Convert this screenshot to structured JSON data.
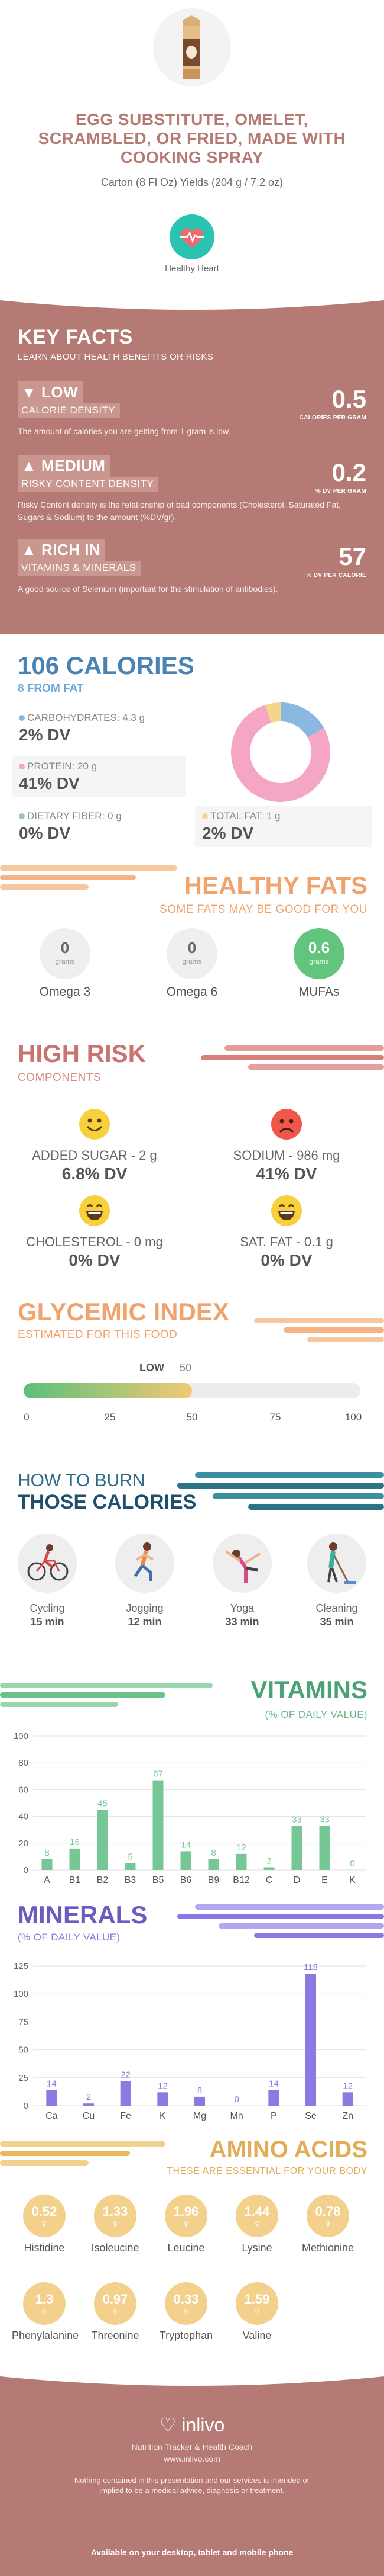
{
  "header": {
    "title": "EGG SUBSTITUTE, OMELET, SCRAMBLED, OR FRIED, MADE WITH COOKING SPRAY",
    "serving": "Carton (8 Fl Oz) Yields (204 g / 7.2 oz)",
    "badge_label": "Healthy Heart"
  },
  "key_facts": {
    "title": "KEY FACTS",
    "subtitle": "LEARN ABOUT HEALTH BENEFITS OR RISKS",
    "items": [
      {
        "level": "LOW",
        "category": "CALORIE DENSITY",
        "value": "0.5",
        "unit": "CALORIES PER GRAM",
        "description": "The amount of calories you are getting from 1 gram is low."
      },
      {
        "level": "MEDIUM",
        "category": "RISKY CONTENT DENSITY",
        "value": "0.2",
        "unit": "% DV PER GRAM",
        "description": "Risky Content density is the relationship of bad components (Cholesterol, Saturated Fat, Sugars & Sodium) to the amount (%DV/gr)."
      },
      {
        "level": "RICH IN",
        "category": "VITAMINS & MINERALS",
        "value": "57",
        "unit": "% DV PER CALORIE",
        "description": "A good source of Selenium (important for the stimulation of antibodies)."
      }
    ]
  },
  "calories": {
    "title": "106 CALORIES",
    "from_fat": "8 FROM FAT",
    "carbs_label": "CARBOHYDRATES: 4.3 g",
    "carbs_dv": "2% DV",
    "protein_label": "PROTEIN: 20 g",
    "protein_dv": "41% DV",
    "fiber_label": "DIETARY FIBER: 0 g",
    "fiber_dv": "0% DV",
    "fat_label": "TOTAL FAT: 1 g",
    "fat_dv": "2% DV",
    "donut": {
      "carbs": 17,
      "protein": 78,
      "fat": 5
    },
    "colors": {
      "carbs": "#8bb8e0",
      "protein": "#f4a6c4",
      "fat": "#f5d58c",
      "fiber": "#9bc6ba"
    }
  },
  "healthy_fats": {
    "title": "HEALTHY FATS",
    "subtitle": "SOME FATS MAY BE GOOD FOR YOU",
    "items": [
      {
        "name": "Omega 3",
        "value": "0",
        "unit": "grams"
      },
      {
        "name": "Omega 6",
        "value": "0",
        "unit": "grams"
      },
      {
        "name": "MUFAs",
        "value": "0.6",
        "unit": "grams"
      }
    ]
  },
  "high_risk": {
    "title": "HIGH RISK",
    "subtitle": "COMPONENTS",
    "items": [
      {
        "label": "ADDED SUGAR - 2 g",
        "dv": "6.8% DV",
        "mood": "happy"
      },
      {
        "label": "SODIUM - 986 mg",
        "dv": "41% DV",
        "mood": "sad"
      },
      {
        "label": "CHOLESTEROL - 0 mg",
        "dv": "0% DV",
        "mood": "grin"
      },
      {
        "label": "SAT. FAT - 0.1 g",
        "dv": "0% DV",
        "mood": "grin"
      }
    ]
  },
  "glycemic": {
    "title": "GLYCEMIC INDEX",
    "subtitle": "ESTIMATED FOR THIS FOOD",
    "level": "LOW",
    "value": "50",
    "value_num": 50,
    "ticks": [
      "0",
      "25",
      "50",
      "75",
      "100"
    ]
  },
  "burn": {
    "title_line1": "HOW TO BURN",
    "title_line2": "THOSE CALORIES",
    "activities": [
      {
        "name": "Cycling",
        "minutes": "15 min",
        "icon": "cycling-icon"
      },
      {
        "name": "Jogging",
        "minutes": "12 min",
        "icon": "jogging-icon"
      },
      {
        "name": "Yoga",
        "minutes": "33 min",
        "icon": "yoga-icon"
      },
      {
        "name": "Cleaning",
        "minutes": "35 min",
        "icon": "cleaning-icon"
      }
    ]
  },
  "vitamins": {
    "title": "VITAMINS",
    "subtitle": "(% OF DAILY VALUE)"
  },
  "minerals": {
    "title": "MINERALS",
    "subtitle": "(% OF DAILY VALUE)"
  },
  "amino": {
    "title": "AMINO ACIDS",
    "subtitle": "THESE ARE ESSENTIAL FOR YOUR BODY",
    "unit": "g",
    "items": [
      {
        "name": "Histidine",
        "value": "0.52"
      },
      {
        "name": "Isoleucine",
        "value": "1.33"
      },
      {
        "name": "Leucine",
        "value": "1.96"
      },
      {
        "name": "Lysine",
        "value": "1.44"
      },
      {
        "name": "Methionine",
        "value": "0.78"
      },
      {
        "name": "Phenylalanine",
        "value": "1.3"
      },
      {
        "name": "Threonine",
        "value": "0.97"
      },
      {
        "name": "Tryptophan",
        "value": "0.33"
      },
      {
        "name": "Valine",
        "value": "1.59"
      }
    ]
  },
  "footer": {
    "brand": "inlivo",
    "tagline": "Nutrition Tracker & Health Coach",
    "url": "www.inlivo.com",
    "disclaimer": "Nothing contained in this presentation and our services is intended or implied to be a medical advice, diagnosis or treatment.",
    "availability": "Available on your desktop, tablet and mobile phone"
  },
  "chart_data": [
    {
      "type": "bar",
      "title": "VITAMINS",
      "subtitle": "(% OF DAILY VALUE)",
      "categories": [
        "A",
        "B1",
        "B2",
        "B3",
        "B5",
        "B6",
        "B9",
        "B12",
        "C",
        "D",
        "E",
        "K"
      ],
      "values": [
        8,
        16,
        45,
        5,
        67,
        14,
        8,
        12,
        2,
        33,
        33,
        0
      ],
      "ylim": [
        0,
        100
      ],
      "yticks": [
        0,
        20,
        40,
        60,
        80,
        100
      ],
      "grid": true,
      "color": "#76c795"
    },
    {
      "type": "bar",
      "title": "MINERALS",
      "subtitle": "(% OF DAILY VALUE)",
      "categories": [
        "Ca",
        "Cu",
        "Fe",
        "K",
        "Mg",
        "Mn",
        "P",
        "Se",
        "Zn"
      ],
      "values": [
        14,
        2,
        22,
        12,
        8,
        0,
        14,
        118,
        12
      ],
      "ylim": [
        0,
        125
      ],
      "yticks": [
        0,
        25,
        50,
        75,
        100,
        125
      ],
      "grid": true,
      "color": "#8a7be0"
    }
  ]
}
